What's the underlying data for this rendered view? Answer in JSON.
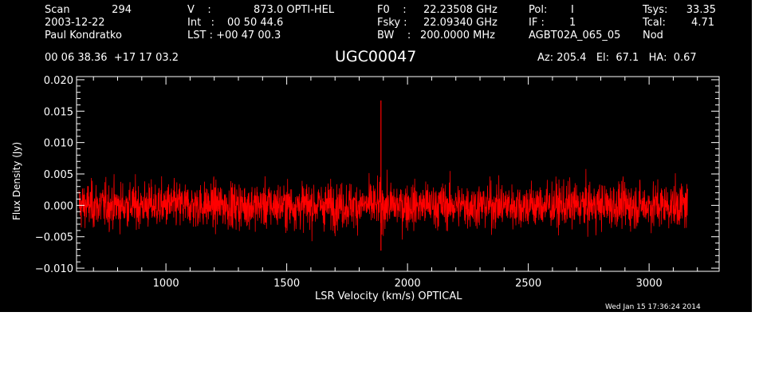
{
  "header": {
    "scan_label": "Scan",
    "scan_number": "294",
    "date": "2003-12-22",
    "observer": "Paul Kondratko",
    "v_label": "V    :",
    "v_value": "873.0 OPTI-HEL",
    "int_label": "Int   :",
    "int_value": "00 50 44.6",
    "lst_label": "LST : +00 47 00.3",
    "f0_label": "F0    :",
    "f0_value": "22.23508 GHz",
    "fsky_label": "Fsky :",
    "fsky_value": "22.09340 GHz",
    "bw_label": "BW    :",
    "bw_value": "200.0000 MHz",
    "pol_label": "Pol:",
    "pol_value": "I",
    "if_label": "IF :",
    "if_value": "1",
    "project": "AGBT02A_065_05",
    "tsys_label": "Tsys:",
    "tsys_value": "33.35",
    "tcal_label": "Tcal:",
    "tcal_value": "4.71",
    "mode": "Nod",
    "coords": "00 06 38.36  +17 17 03.2",
    "source": "UGC00047",
    "az_el_ha": "Az: 205.4   El:  67.1   HA:  0.67"
  },
  "footer": {
    "timestamp": "Wed Jan 15 17:36:24 2014"
  },
  "colors": {
    "background": "#000000",
    "axes": "#ffffff",
    "trace": "#ff0000"
  },
  "chart_data": {
    "type": "line",
    "title": "UGC00047",
    "xlabel": "LSR Velocity (km/s) OPTICAL",
    "ylabel": "Flux Density (Jy)",
    "xlim": [
      630,
      3290
    ],
    "ylim": [
      -0.0105,
      0.0205
    ],
    "x_ticks": [
      1000,
      1500,
      2000,
      2500,
      3000
    ],
    "x_tick_labels": [
      "1000",
      "1500",
      "2000",
      "2500",
      "3000"
    ],
    "y_ticks": [
      -0.01,
      -0.005,
      0.0,
      0.005,
      0.01,
      0.015,
      0.02
    ],
    "y_tick_labels": [
      "−0.010",
      "−0.005",
      "0.000",
      "0.005",
      "0.010",
      "0.015",
      "0.020"
    ],
    "grid": false,
    "series": [
      {
        "data_x_range": [
          640,
          3160
        ],
        "baseline": 0.0,
        "noise_rms": 0.0018,
        "spikes": [
          {
            "x": 1890,
            "y": 0.0167
          },
          {
            "x": 1890,
            "y": -0.0072
          }
        ]
      }
    ]
  }
}
